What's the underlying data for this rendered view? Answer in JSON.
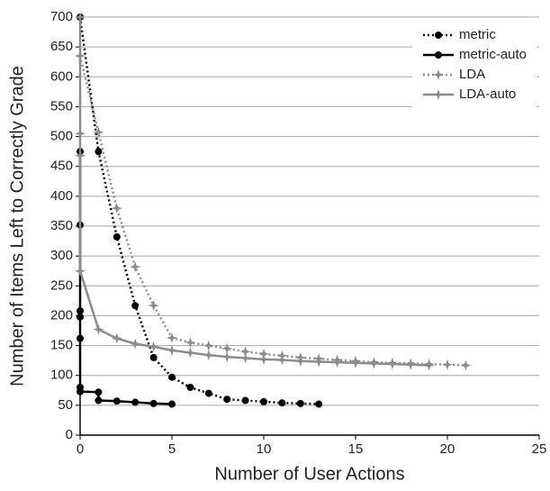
{
  "chart_data": {
    "type": "line",
    "xlabel": "Number of User Actions",
    "ylabel": "Number of Items Left to Correctly Grade",
    "xlim": [
      0,
      25
    ],
    "xticks": [
      0,
      5,
      10,
      15,
      20,
      25
    ],
    "ylim": [
      0,
      700
    ],
    "yticks": [
      0,
      50,
      100,
      150,
      200,
      250,
      300,
      350,
      400,
      450,
      500,
      550,
      600,
      650,
      700
    ],
    "grid": true,
    "legend": "upper-right",
    "series": [
      {
        "name": "metric",
        "color": "#000000",
        "style": "dotted",
        "marker": "circle",
        "x": [
          0,
          1,
          2,
          3,
          4,
          5,
          6,
          7,
          8,
          9,
          10,
          11,
          12,
          13
        ],
        "values": [
          700,
          475,
          332,
          217,
          130,
          97,
          80,
          70,
          60,
          58,
          56,
          54,
          53,
          52
        ]
      },
      {
        "name": "metric-auto",
        "color": "#000000",
        "style": "solid",
        "marker": "circle",
        "x": [
          0,
          0,
          0,
          0,
          0,
          0,
          0,
          1,
          1,
          2,
          3,
          4,
          5
        ],
        "values": [
          475,
          352,
          208,
          198,
          162,
          80,
          73,
          72,
          58,
          57,
          55,
          53,
          52
        ]
      },
      {
        "name": "LDA",
        "color": "#8c8c8c",
        "style": "dotted",
        "marker": "star",
        "x": [
          0,
          1,
          2,
          3,
          4,
          5,
          6,
          7,
          8,
          9,
          10,
          11,
          12,
          13,
          14,
          15,
          16,
          17,
          18,
          19,
          20,
          21
        ],
        "values": [
          635,
          507,
          380,
          282,
          217,
          163,
          155,
          150,
          145,
          140,
          136,
          133,
          130,
          128,
          126,
          124,
          122,
          121,
          120,
          119,
          118,
          117
        ]
      },
      {
        "name": "LDA-auto",
        "color": "#8c8c8c",
        "style": "solid",
        "marker": "star",
        "x": [
          0,
          0,
          0,
          0,
          1,
          2,
          3,
          4,
          5,
          6,
          7,
          8,
          9,
          10,
          11,
          12,
          13,
          14,
          15,
          16,
          17,
          18,
          19
        ],
        "values": [
          700,
          505,
          468,
          275,
          177,
          162,
          153,
          148,
          142,
          138,
          134,
          131,
          129,
          127,
          126,
          124,
          123,
          122,
          121,
          120,
          119,
          118,
          117
        ]
      }
    ]
  }
}
